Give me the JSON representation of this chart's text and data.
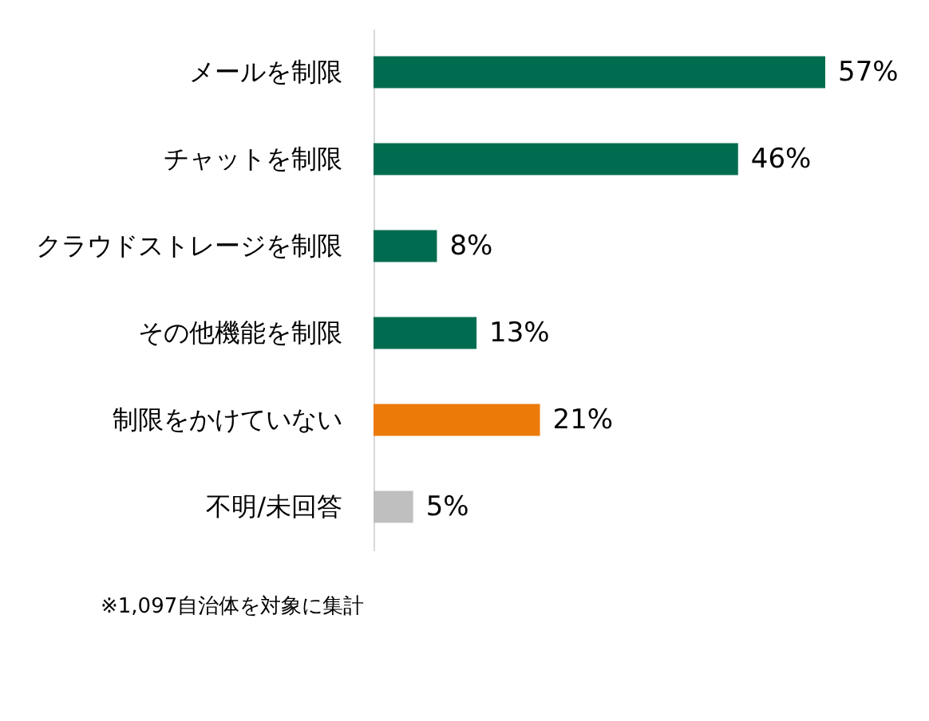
{
  "chart_data": {
    "type": "bar",
    "orientation": "horizontal",
    "categories": [
      "メールを制限",
      "チャットを制限",
      "クラウドストレージを制限",
      "その他機能を制限",
      "制限をかけていない",
      "不明/未回答"
    ],
    "values": [
      57,
      46,
      8,
      13,
      21,
      5
    ],
    "colors": [
      "#006c4f",
      "#006c4f",
      "#006c4f",
      "#006c4f",
      "#ec7a08",
      "#bfbfbf"
    ],
    "value_labels": [
      "57%",
      "46%",
      "8%",
      "13%",
      "21%",
      "5%"
    ],
    "annotations": [
      "※1,097自治体を対象に集計"
    ]
  }
}
